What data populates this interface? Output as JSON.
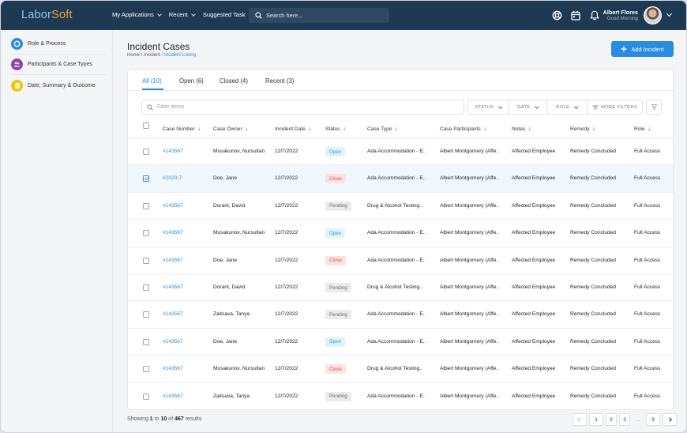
{
  "brand": {
    "part1": "Labor",
    "part2": "Soft"
  },
  "nav": [
    {
      "label": "My Applications"
    },
    {
      "label": "Recent"
    },
    {
      "label": "Suggested Task"
    }
  ],
  "search": {
    "placeholder": "Search here..."
  },
  "user": {
    "name": "Albert Flores",
    "greeting": "Good Morning"
  },
  "sidebar": {
    "items": [
      {
        "label": "Role & Process",
        "color": "#2a8ce0",
        "icon": "target-icon"
      },
      {
        "label": "Participants & Case Types",
        "color": "#8e44ad",
        "icon": "people-icon"
      },
      {
        "label": "Date, Summary & Outcome",
        "color": "#f1c40f",
        "icon": "document-icon"
      }
    ]
  },
  "page": {
    "title": "Incident Cases",
    "breadcrumb": {
      "home": "Home",
      "section": "Incident",
      "current": "Incident Listing",
      "sep": " / "
    },
    "add_label": "Add Incident"
  },
  "tabs": [
    {
      "label": "All (10)",
      "active": true
    },
    {
      "label": "Open (6)",
      "active": false
    },
    {
      "label": "Closed (4)",
      "active": false
    },
    {
      "label": "Recent (3)",
      "active": false
    }
  ],
  "filters": {
    "placeholder": "Filter items",
    "status": "STATUS",
    "date": "DATE",
    "role": "ROLE",
    "more": "MORE FILTERS"
  },
  "columns": [
    "Case Number",
    "Case Owner",
    "Incident Date",
    "Status",
    "Case Type",
    "Case Participants",
    "Notes",
    "Remedy",
    "Role"
  ],
  "rows": [
    {
      "case": "#143567",
      "owner": "Musakunov, Nursultan",
      "date": "12/7/2022",
      "status": "Open",
      "type": "Ada Accommodation - E..",
      "participants": "Albert Montgomery (Affe..",
      "notes": "Affected Employee",
      "remedy": "Remedy Concluded",
      "role": "Full Access",
      "checked": false
    },
    {
      "case": "#2023-7",
      "owner": "Doe, Jane",
      "date": "12/7/2022",
      "status": "Close",
      "type": "Ada Accommodation - E..",
      "participants": "Albert Montgomery (Affe..",
      "notes": "Affected Employee",
      "remedy": "Remedy Concluded",
      "role": "Full Access",
      "checked": true
    },
    {
      "case": "#143567",
      "owner": "Dorant, David",
      "date": "12/7/2022",
      "status": "Pending",
      "type": "Drug & Alcohol Testing..",
      "participants": "Albert Montgomery (Affe..",
      "notes": "Affected Employee",
      "remedy": "Remedy Concluded",
      "role": "Full Access",
      "checked": false
    },
    {
      "case": "#143567",
      "owner": "Musakunov, Nursultan",
      "date": "12/7/2022",
      "status": "Open",
      "type": "Ada Accommodation - E..",
      "participants": "Albert Montgomery (Affe..",
      "notes": "Affected Employee",
      "remedy": "Remedy Concluded",
      "role": "Full Access",
      "checked": false
    },
    {
      "case": "#143567",
      "owner": "Doe, Jane",
      "date": "12/7/2022",
      "status": "Close",
      "type": "Ada Accommodation - E..",
      "participants": "Albert Montgomery (Affe..",
      "notes": "Affected Employee",
      "remedy": "Remedy Concluded",
      "role": "Full Access",
      "checked": false
    },
    {
      "case": "#143567",
      "owner": "Dorant, David",
      "date": "12/7/2022",
      "status": "Pending",
      "type": "Drug & Alcohol Testing..",
      "participants": "Albert Montgomery (Affe..",
      "notes": "Affected Employee",
      "remedy": "Remedy Concluded",
      "role": "Full Access",
      "checked": false
    },
    {
      "case": "#143567",
      "owner": "Zaitsava, Tanya",
      "date": "12/7/2022",
      "status": "Pending",
      "type": "Ada Accommodation - E..",
      "participants": "Albert Montgomery (Affe..",
      "notes": "Affected Employee",
      "remedy": "Remedy Concluded",
      "role": "Full Access",
      "checked": false
    },
    {
      "case": "#143567",
      "owner": "Doe, Jane",
      "date": "12/7/2022",
      "status": "Open",
      "type": "Ada Accommodation - E..",
      "participants": "Albert Montgomery (Affe..",
      "notes": "Affected Employee",
      "remedy": "Remedy Concluded",
      "role": "Full Access",
      "checked": false
    },
    {
      "case": "#143567",
      "owner": "Musakunov, Nursultan",
      "date": "12/7/2022",
      "status": "Close",
      "type": "Drug & Alcohol Testing..",
      "participants": "Albert Montgomery (Affe..",
      "notes": "Affected Employee",
      "remedy": "Remedy Concluded",
      "role": "Full Access",
      "checked": false
    },
    {
      "case": "#143567",
      "owner": "Zaitsava, Tanya",
      "date": "12/7/2022",
      "status": "Pending",
      "type": "Ada Accommodation - E..",
      "participants": "Albert Montgomery (Affe..",
      "notes": "Affected Employee",
      "remedy": "Remedy Concluded",
      "role": "Full Access",
      "checked": false
    }
  ],
  "footer": {
    "showing_prefix": "Showing ",
    "from": "1",
    "to_word": " to ",
    "to": "10",
    "of_word": " of ",
    "total": "467",
    "suffix": " results"
  },
  "pagination": {
    "pages": [
      "1",
      "2",
      "3"
    ],
    "ellipsis": "...",
    "last": "9"
  }
}
